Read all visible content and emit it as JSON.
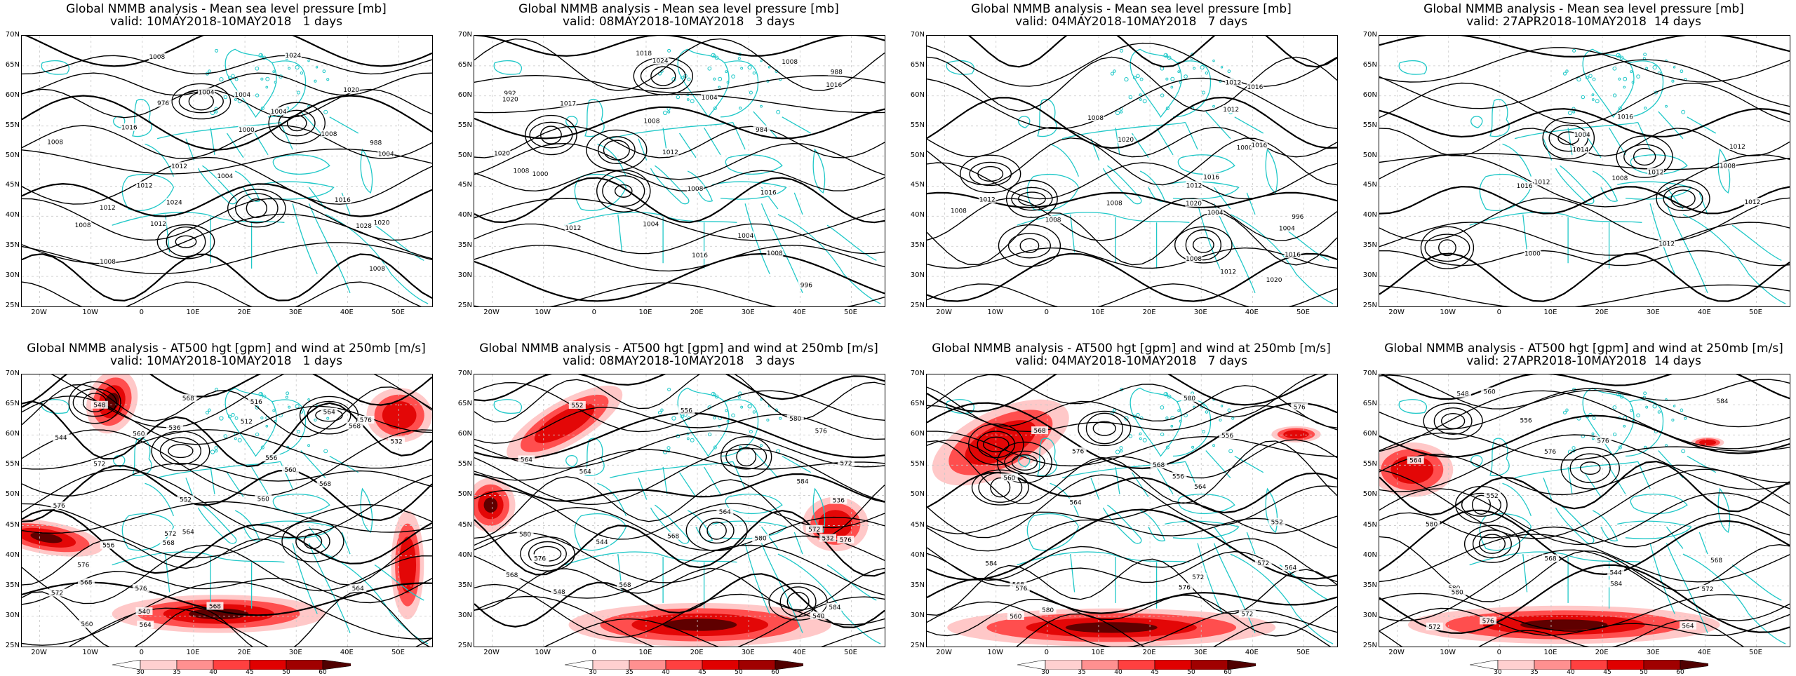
{
  "colors": {
    "coast": "#20c8c8",
    "contour": "#000000",
    "wind_light": "#ffb0b0",
    "wind_mid": "#ff4040",
    "wind_strong": "#e00000",
    "wind_max": "#500000"
  },
  "axes": {
    "lat_labels": [
      "70N",
      "65N",
      "60N",
      "55N",
      "50N",
      "45N",
      "40N",
      "35N",
      "30N",
      "25N"
    ],
    "lon_labels": [
      "20W",
      "10W",
      "0",
      "10E",
      "20E",
      "30E",
      "40E",
      "50E"
    ]
  },
  "colorbar": {
    "ticks": [
      "30",
      "35",
      "40",
      "45",
      "50",
      "60"
    ]
  },
  "panels_top": [
    {
      "title": "Global NMMB analysis - Mean sea level pressure [mb]",
      "valid": "valid: 10MAY2018-10MAY2018   1 days",
      "labels": [
        "976",
        "988",
        "1004",
        "1004",
        "1012",
        "1020",
        "1024",
        "1024",
        "1028",
        "1020",
        "1016",
        "1016",
        "1008",
        "1012",
        "1008",
        "1004",
        "1012",
        "1008",
        "1008",
        "1004",
        "1008",
        "1004",
        "1008",
        "1012",
        "1000"
      ]
    },
    {
      "title": "Global NMMB analysis - Mean sea level pressure [mb]",
      "valid": "valid: 08MAY2018-10MAY2018   3 days",
      "labels": [
        "1020",
        "1024",
        "984",
        "988",
        "992",
        "996",
        "1000",
        "1004",
        "1008",
        "1008",
        "1012",
        "1016",
        "1018",
        "1020",
        "1017",
        "1012",
        "1016",
        "1008",
        "1008",
        "1004",
        "1004",
        "1008",
        "1016"
      ]
    },
    {
      "title": "Global NMMB analysis - Mean sea level pressure [mb]",
      "valid": "valid: 04MAY2018-10MAY2018   7 days",
      "labels": [
        "1020",
        "996",
        "1000",
        "1004",
        "1008",
        "1012",
        "1016",
        "1020",
        "1016",
        "1012",
        "1016",
        "1012",
        "1008",
        "1004",
        "1008",
        "1020",
        "1016",
        "1012",
        "1012",
        "1008",
        "1008"
      ]
    },
    {
      "title": "Global NMMB analysis - Mean sea level pressure [mb]",
      "valid": "valid: 27APR2018-10MAY2018  14 days",
      "labels": [
        "1000",
        "1004",
        "1008",
        "1012",
        "1016",
        "1012",
        "1016",
        "1012",
        "1014",
        "1012",
        "1012",
        "1008"
      ]
    }
  ],
  "panels_bottom": [
    {
      "title": "Global NMMB analysis - AT500 hgt [gpm] and wind at 250mb [m/s]",
      "valid": "valid: 10MAY2018-10MAY2018   1 days",
      "labels": [
        "512",
        "516",
        "532",
        "536",
        "540",
        "544",
        "548",
        "552",
        "556",
        "560",
        "564",
        "568",
        "572",
        "576",
        "564",
        "568",
        "560",
        "576",
        "568",
        "564",
        "572",
        "560",
        "556",
        "568",
        "568",
        "576",
        "572",
        "568",
        "564",
        "576",
        "560"
      ]
    },
    {
      "title": "Global NMMB analysis - AT500 hgt [gpm] and wind at 250mb [m/s]",
      "valid": "valid: 08MAY2018-10MAY2018   3 days",
      "labels": [
        "564",
        "560",
        "564",
        "568",
        "532",
        "536",
        "540",
        "544",
        "548",
        "552",
        "556",
        "568",
        "564",
        "572",
        "572",
        "568",
        "576",
        "580",
        "576",
        "584",
        "576",
        "580",
        "584",
        "580"
      ]
    },
    {
      "title": "Global NMMB analysis - AT500 hgt [gpm] and wind at 250mb [m/s]",
      "valid": "valid: 04MAY2018-10MAY2018   7 days",
      "labels": [
        "552",
        "556",
        "560",
        "564",
        "568",
        "572",
        "576",
        "568",
        "564",
        "560",
        "556",
        "564",
        "568",
        "572",
        "576",
        "576",
        "580",
        "584",
        "576",
        "572",
        "580"
      ]
    },
    {
      "title": "Global NMMB analysis - AT500 hgt [gpm] and wind at 250mb [m/s]",
      "valid": "valid: 27APR2018-10MAY2018  14 days",
      "labels": [
        "544",
        "548",
        "552",
        "556",
        "560",
        "564",
        "568",
        "572",
        "576",
        "580",
        "564",
        "568",
        "572",
        "576",
        "580",
        "584",
        "576",
        "580",
        "584"
      ]
    }
  ]
}
